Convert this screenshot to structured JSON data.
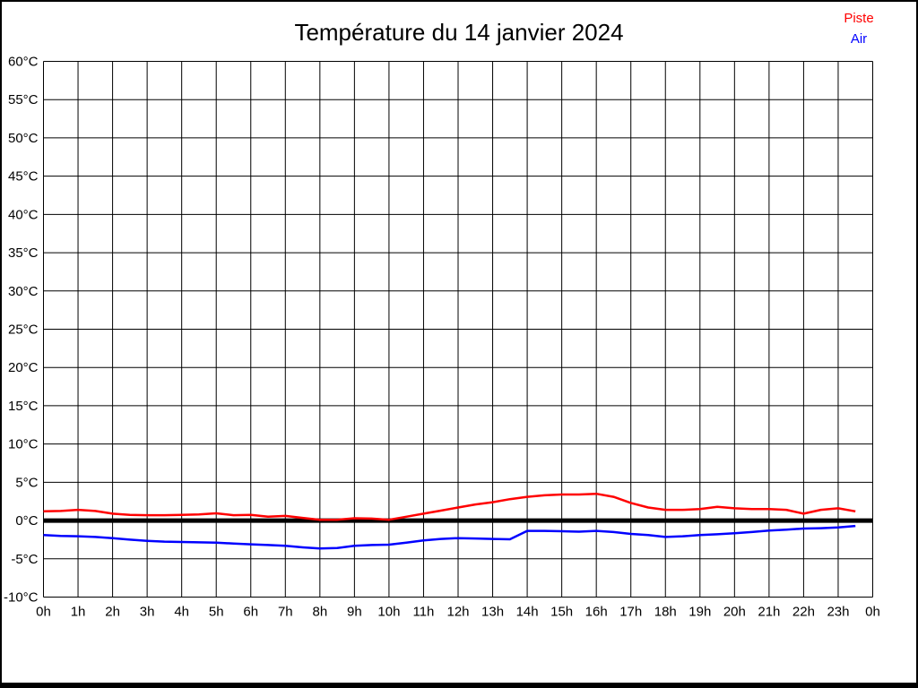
{
  "header": {
    "title": "Température du 14 janvier 2024"
  },
  "legend": {
    "piste": {
      "label": "Piste",
      "color": "#ff0000"
    },
    "air": {
      "label": "Air",
      "color": "#0000ff"
    }
  },
  "chart_data": {
    "type": "line",
    "title": "Température du 14 janvier 2024",
    "xlabel": "",
    "ylabel": "",
    "xlim": [
      0,
      24
    ],
    "ylim": [
      -10,
      60
    ],
    "x_tick_step": 1,
    "y_tick_step": 5,
    "x_tick_labels": [
      "0h",
      "1h",
      "2h",
      "3h",
      "4h",
      "5h",
      "6h",
      "7h",
      "8h",
      "9h",
      "10h",
      "11h",
      "12h",
      "13h",
      "14h",
      "15h",
      "16h",
      "17h",
      "18h",
      "19h",
      "20h",
      "21h",
      "22h",
      "23h",
      "0h"
    ],
    "y_tick_labels": [
      "-10°C",
      "-5°C",
      "0°C",
      "5°C",
      "10°C",
      "15°C",
      "20°C",
      "25°C",
      "30°C",
      "35°C",
      "40°C",
      "45°C",
      "50°C",
      "55°C",
      "60°C"
    ],
    "grid": true,
    "grid_color": "#000000",
    "background": "#ffffff",
    "zero_line": {
      "value": 0,
      "color": "#000000",
      "width": 5
    },
    "legend_position": "top-right",
    "series": [
      {
        "name": "Piste",
        "color": "#ff0000",
        "x": [
          0,
          0.5,
          1,
          1.5,
          2,
          2.5,
          3,
          3.5,
          4,
          4.5,
          5,
          5.5,
          6,
          6.5,
          7,
          7.5,
          8,
          8.5,
          9,
          9.5,
          10,
          10.5,
          11,
          11.5,
          12,
          12.5,
          13,
          13.5,
          14,
          14.5,
          15,
          15.5,
          16,
          16.5,
          17,
          17.5,
          18,
          18.5,
          19,
          19.5,
          20,
          20.5,
          21,
          21.5,
          22,
          22.5,
          23,
          23.5
        ],
        "values": [
          1.2,
          1.25,
          1.4,
          1.25,
          0.9,
          0.75,
          0.7,
          0.7,
          0.75,
          0.8,
          0.95,
          0.7,
          0.75,
          0.5,
          0.6,
          0.35,
          0.1,
          0.1,
          0.3,
          0.25,
          0.1,
          0.5,
          0.9,
          1.3,
          1.7,
          2.1,
          2.4,
          2.8,
          3.1,
          3.3,
          3.4,
          3.4,
          3.5,
          3.1,
          2.3,
          1.7,
          1.4,
          1.4,
          1.5,
          1.8,
          1.6,
          1.5,
          1.5,
          1.4,
          0.9,
          1.4,
          1.6,
          1.2
        ]
      },
      {
        "name": "Air",
        "color": "#0000ff",
        "x": [
          0,
          0.5,
          1,
          1.5,
          2,
          2.5,
          3,
          3.5,
          4,
          4.5,
          5,
          5.5,
          6,
          6.5,
          7,
          7.5,
          8,
          8.5,
          9,
          9.5,
          10,
          10.5,
          11,
          11.5,
          12,
          12.5,
          13,
          13.5,
          14,
          14.5,
          15,
          15.5,
          16,
          16.5,
          17,
          17.5,
          18,
          18.5,
          19,
          19.5,
          20,
          20.5,
          21,
          21.5,
          22,
          22.5,
          23,
          23.5
        ],
        "values": [
          -1.9,
          -2.0,
          -2.05,
          -2.15,
          -2.3,
          -2.5,
          -2.65,
          -2.75,
          -2.8,
          -2.85,
          -2.9,
          -3.0,
          -3.1,
          -3.2,
          -3.3,
          -3.5,
          -3.65,
          -3.6,
          -3.3,
          -3.2,
          -3.15,
          -2.9,
          -2.6,
          -2.4,
          -2.3,
          -2.35,
          -2.4,
          -2.45,
          -1.35,
          -1.35,
          -1.4,
          -1.45,
          -1.35,
          -1.5,
          -1.75,
          -1.9,
          -2.15,
          -2.05,
          -1.9,
          -1.8,
          -1.65,
          -1.5,
          -1.3,
          -1.2,
          -1.05,
          -1.0,
          -0.9,
          -0.7
        ]
      }
    ]
  }
}
